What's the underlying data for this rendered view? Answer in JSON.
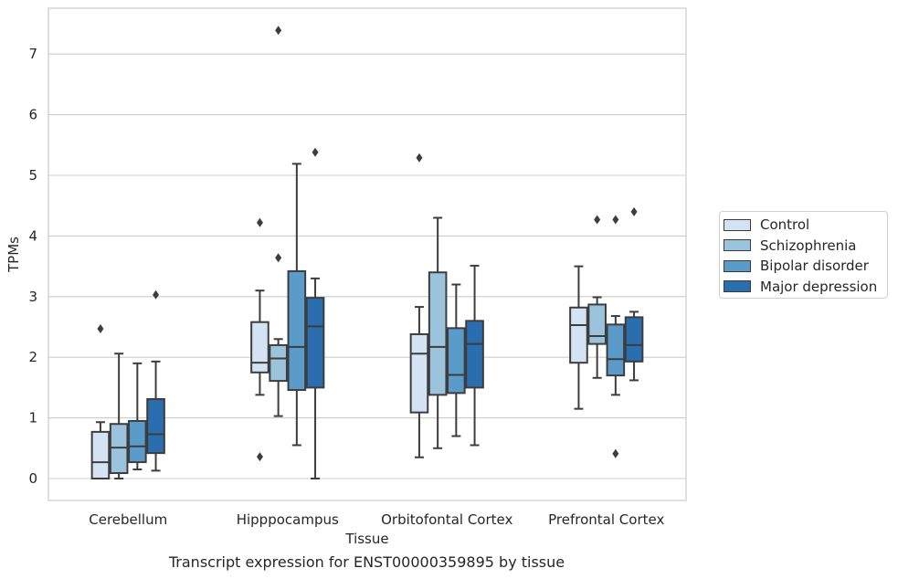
{
  "chart_data": {
    "type": "box",
    "caption": "Transcript expression for ENST00000359895 by tissue",
    "xlabel": "Tissue",
    "ylabel": "TPMs",
    "ylim": [
      -0.35,
      7.75
    ],
    "yticks": [
      0,
      1,
      2,
      3,
      4,
      5,
      6,
      7
    ],
    "grid": "horizontal",
    "legend_position": "right, outside plot",
    "categories": [
      "Cerebellum",
      "Hipppocampus",
      "Orbitofontal Cortex",
      "Prefrontal Cortex"
    ],
    "series": [
      {
        "name": "Control",
        "color": "#d4e3f3",
        "boxes": [
          {
            "whislo": 0.0,
            "q1": 0.0,
            "med": 0.27,
            "q3": 0.77,
            "whishi": 0.93,
            "fliers": [
              2.47
            ]
          },
          {
            "whislo": 1.38,
            "q1": 1.75,
            "med": 1.91,
            "q3": 2.58,
            "whishi": 3.1,
            "fliers": [
              4.22,
              0.36
            ]
          },
          {
            "whislo": 0.35,
            "q1": 1.09,
            "med": 2.06,
            "q3": 2.38,
            "whishi": 2.83,
            "fliers": [
              5.29
            ]
          },
          {
            "whislo": 1.15,
            "q1": 1.91,
            "med": 2.53,
            "q3": 2.82,
            "whishi": 3.5,
            "fliers": []
          }
        ]
      },
      {
        "name": "Schizophrenia",
        "color": "#9cc3dc",
        "boxes": [
          {
            "whislo": 0.0,
            "q1": 0.09,
            "med": 0.51,
            "q3": 0.9,
            "whishi": 2.06,
            "fliers": []
          },
          {
            "whislo": 1.03,
            "q1": 1.61,
            "med": 1.98,
            "q3": 2.2,
            "whishi": 2.3,
            "fliers": [
              7.39,
              3.64
            ]
          },
          {
            "whislo": 0.5,
            "q1": 1.38,
            "med": 2.17,
            "q3": 3.4,
            "whishi": 4.3,
            "fliers": []
          },
          {
            "whislo": 1.66,
            "q1": 2.22,
            "med": 2.35,
            "q3": 2.87,
            "whishi": 2.99,
            "fliers": [
              4.27
            ]
          }
        ]
      },
      {
        "name": "Bipolar disorder",
        "color": "#5b9bc9",
        "boxes": [
          {
            "whislo": 0.15,
            "q1": 0.27,
            "med": 0.53,
            "q3": 0.95,
            "whishi": 1.9,
            "fliers": []
          },
          {
            "whislo": 0.55,
            "q1": 1.46,
            "med": 2.17,
            "q3": 3.42,
            "whishi": 5.19,
            "fliers": []
          },
          {
            "whislo": 0.7,
            "q1": 1.41,
            "med": 1.71,
            "q3": 2.48,
            "whishi": 3.2,
            "fliers": []
          },
          {
            "whislo": 1.38,
            "q1": 1.7,
            "med": 1.97,
            "q3": 2.54,
            "whishi": 2.68,
            "fliers": [
              4.27,
              0.41
            ]
          }
        ]
      },
      {
        "name": "Major depression",
        "color": "#2a6eaf",
        "boxes": [
          {
            "whislo": 0.13,
            "q1": 0.42,
            "med": 0.73,
            "q3": 1.31,
            "whishi": 1.93,
            "fliers": [
              3.03
            ]
          },
          {
            "whislo": 0.0,
            "q1": 1.5,
            "med": 2.51,
            "q3": 2.98,
            "whishi": 3.3,
            "fliers": [
              5.38
            ]
          },
          {
            "whislo": 0.55,
            "q1": 1.5,
            "med": 2.22,
            "q3": 2.6,
            "whishi": 3.51,
            "fliers": []
          },
          {
            "whislo": 1.62,
            "q1": 1.93,
            "med": 2.2,
            "q3": 2.66,
            "whishi": 2.75,
            "fliers": [
              4.4
            ]
          }
        ]
      }
    ]
  }
}
